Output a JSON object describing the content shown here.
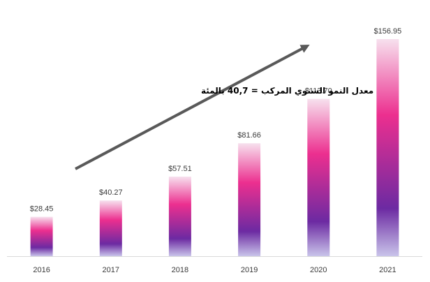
{
  "chart_data": {
    "type": "bar",
    "categories": [
      "2016",
      "2017",
      "2018",
      "2019",
      "2020",
      "2021"
    ],
    "values": [
      28.45,
      40.27,
      57.51,
      81.66,
      113.7,
      156.95
    ],
    "value_labels": [
      "$28.45",
      "$40.27",
      "$57.51",
      "$81.66",
      "$113.70",
      "$156.95"
    ],
    "annotation": "معدل النمو السنوي المركب = 40,7 بالمئة",
    "ylim": [
      0,
      165
    ],
    "grid": false,
    "colors": {
      "top": "#f7e1ee",
      "mid": "#ec2f8f",
      "low": "#6c2aa2",
      "bottom": "#c9c4ea",
      "arrow": "#595959",
      "axis": "#d9d9d9"
    }
  }
}
